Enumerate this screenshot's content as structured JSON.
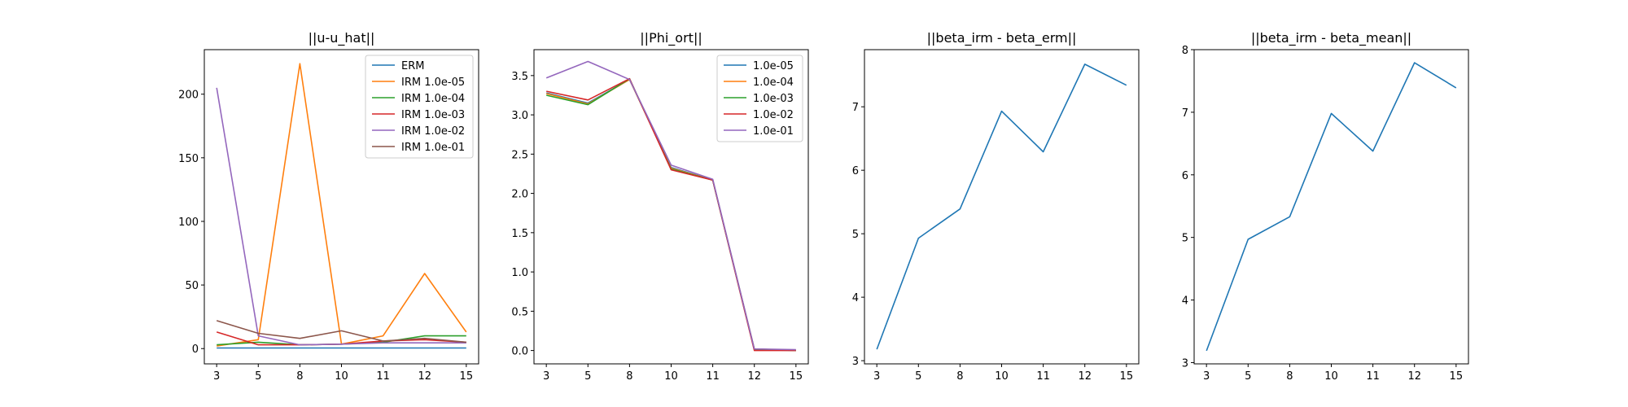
{
  "chart_data": [
    {
      "type": "line",
      "title": "||u-u_hat||",
      "xlabel": "",
      "ylabel": "",
      "x": [
        "3",
        "5",
        "8",
        "10",
        "11",
        "12",
        "15"
      ],
      "ylim": [
        -12,
        235
      ],
      "yticks": [
        0,
        50,
        100,
        150,
        200
      ],
      "ytick_labels": [
        "0",
        "50",
        "100",
        "150",
        "200"
      ],
      "legend": "top-right",
      "series": [
        {
          "name": "ERM",
          "color": "#1f77b4",
          "values": [
            0.5,
            0.5,
            0.5,
            0.5,
            0.5,
            0.5,
            0.5
          ]
        },
        {
          "name": "IRM 1.0e-05",
          "color": "#ff7f0e",
          "values": [
            2,
            7,
            224,
            3.5,
            10,
            59,
            13
          ]
        },
        {
          "name": "IRM 1.0e-04",
          "color": "#2ca02c",
          "values": [
            3,
            5,
            3,
            3.5,
            5,
            10,
            10
          ]
        },
        {
          "name": "IRM 1.0e-03",
          "color": "#d62728",
          "values": [
            13,
            3,
            3,
            3.5,
            6,
            7,
            5
          ]
        },
        {
          "name": "IRM 1.0e-02",
          "color": "#9467bd",
          "values": [
            205,
            10,
            3,
            3.5,
            4.5,
            4.5,
            4.5
          ]
        },
        {
          "name": "IRM 1.0e-01",
          "color": "#8c564b",
          "values": [
            22,
            12,
            8,
            14,
            6,
            8,
            5
          ]
        }
      ]
    },
    {
      "type": "line",
      "title": "||Phi_ort||",
      "xlabel": "",
      "ylabel": "",
      "x": [
        "3",
        "5",
        "8",
        "10",
        "11",
        "12",
        "15"
      ],
      "ylim": [
        -0.17,
        3.83
      ],
      "yticks": [
        0,
        0.5,
        1,
        1.5,
        2,
        2.5,
        3,
        3.5
      ],
      "ytick_labels": [
        "0.0",
        "0.5",
        "1.0",
        "1.5",
        "2.0",
        "2.5",
        "3.0",
        "3.5"
      ],
      "legend": "top-right",
      "series": [
        {
          "name": "1.0e-05",
          "color": "#1f77b4",
          "values": [
            3.28,
            3.15,
            3.45,
            2.33,
            2.17,
            0.02,
            0.0
          ]
        },
        {
          "name": "1.0e-04",
          "color": "#ff7f0e",
          "values": [
            3.27,
            3.14,
            3.45,
            2.32,
            2.17,
            0.02,
            0.0
          ]
        },
        {
          "name": "1.0e-03",
          "color": "#2ca02c",
          "values": [
            3.25,
            3.13,
            3.46,
            2.31,
            2.17,
            0.01,
            0.0
          ]
        },
        {
          "name": "1.0e-02",
          "color": "#d62728",
          "values": [
            3.3,
            3.19,
            3.46,
            2.3,
            2.17,
            0.0,
            0.0
          ]
        },
        {
          "name": "1.0e-01",
          "color": "#9467bd",
          "values": [
            3.47,
            3.68,
            3.45,
            2.36,
            2.18,
            0.02,
            0.01
          ]
        }
      ]
    },
    {
      "type": "line",
      "title": "||beta_irm - beta_erm||",
      "xlabel": "",
      "ylabel": "",
      "x": [
        "3",
        "5",
        "8",
        "10",
        "11",
        "12",
        "15"
      ],
      "ylim": [
        2.95,
        7.9
      ],
      "yticks": [
        3,
        4,
        5,
        6,
        7
      ],
      "ytick_labels": [
        "3",
        "4",
        "5",
        "6",
        "7"
      ],
      "legend": "none",
      "series": [
        {
          "color": "#1f77b4",
          "values": [
            3.18,
            4.93,
            5.39,
            6.93,
            6.29,
            7.67,
            7.34
          ]
        }
      ]
    },
    {
      "type": "line",
      "title": "||beta_irm - beta_mean||",
      "xlabel": "",
      "ylabel": "",
      "x": [
        "3",
        "5",
        "8",
        "10",
        "11",
        "12",
        "15"
      ],
      "ylim": [
        2.98,
        8.0
      ],
      "yticks": [
        3,
        4,
        5,
        6,
        7,
        8
      ],
      "ytick_labels": [
        "3",
        "4",
        "5",
        "6",
        "7",
        "8"
      ],
      "legend": "none",
      "series": [
        {
          "color": "#1f77b4",
          "values": [
            3.19,
            4.97,
            5.33,
            6.98,
            6.38,
            7.79,
            7.39
          ]
        }
      ]
    }
  ]
}
